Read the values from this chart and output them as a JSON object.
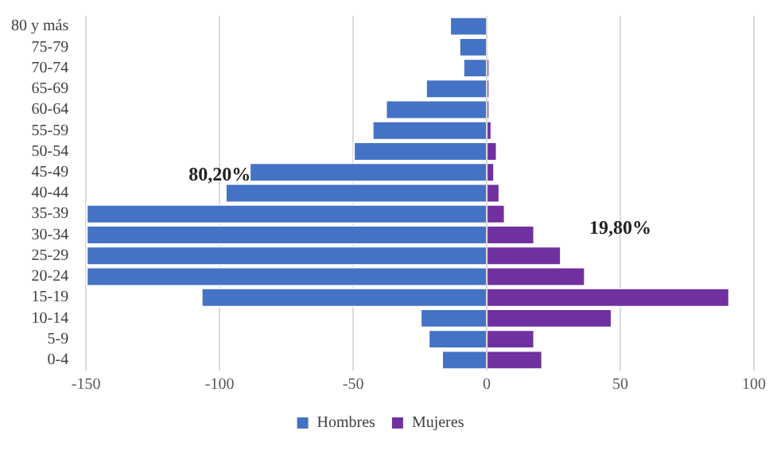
{
  "chart_data": {
    "type": "bar",
    "orientation": "horizontal",
    "stacked": true,
    "categories": [
      "80 y más",
      "75-79",
      "70-74",
      "65-69",
      "60-64",
      "55-59",
      "50-54",
      "45-49",
      "40-44",
      "35-39",
      "30-34",
      "25-29",
      "20-24",
      "15-19",
      "10-14",
      "5-9",
      "0-4"
    ],
    "series": [
      {
        "name": "Hombres",
        "color": "#4472c4",
        "values": [
          -14,
          -10.5,
          -9,
          -23,
          -38,
          -43,
          -50,
          -89,
          -98,
          -150,
          -150,
          -150,
          -150,
          -107,
          -25,
          -22,
          -17
        ]
      },
      {
        "name": "Mujeres",
        "color": "#7030a0",
        "values": [
          0,
          0,
          1,
          1,
          1,
          2,
          4,
          3,
          5,
          7,
          18,
          28,
          37,
          91,
          47,
          18,
          21
        ]
      }
    ],
    "xlim": [
      -150,
      100
    ],
    "xticks": [
      -150,
      -100,
      -50,
      0,
      50,
      100
    ],
    "grid": "x",
    "legend": "bottom",
    "annotations": [
      "80,20%",
      "19,80%"
    ]
  }
}
